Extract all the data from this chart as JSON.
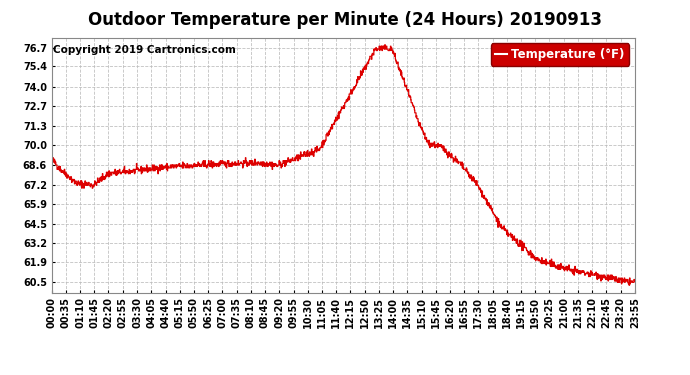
{
  "title": "Outdoor Temperature per Minute (24 Hours) 20190913",
  "copyright_text": "Copyright 2019 Cartronics.com",
  "legend_label": "Temperature (°F)",
  "legend_bg": "#cc0000",
  "legend_text_color": "#ffffff",
  "line_color": "#dd0000",
  "background_color": "#ffffff",
  "grid_color": "#bbbbbb",
  "ylim": [
    59.8,
    77.4
  ],
  "yticks": [
    60.5,
    61.9,
    63.2,
    64.5,
    65.9,
    67.2,
    68.6,
    70.0,
    71.3,
    72.7,
    74.0,
    75.4,
    76.7
  ],
  "x_tick_labels": [
    "00:00",
    "00:35",
    "01:10",
    "01:45",
    "02:20",
    "02:55",
    "03:30",
    "04:05",
    "04:40",
    "05:15",
    "05:50",
    "06:25",
    "07:00",
    "07:35",
    "08:10",
    "08:45",
    "09:20",
    "09:55",
    "10:30",
    "11:05",
    "11:40",
    "12:15",
    "12:50",
    "13:25",
    "14:00",
    "14:35",
    "15:10",
    "15:45",
    "16:20",
    "16:55",
    "17:30",
    "18:05",
    "18:40",
    "19:15",
    "19:50",
    "20:25",
    "21:00",
    "21:35",
    "22:10",
    "22:45",
    "23:20",
    "23:55"
  ],
  "title_fontsize": 12,
  "copyright_fontsize": 7.5,
  "tick_fontsize": 7,
  "n_points": 1440
}
